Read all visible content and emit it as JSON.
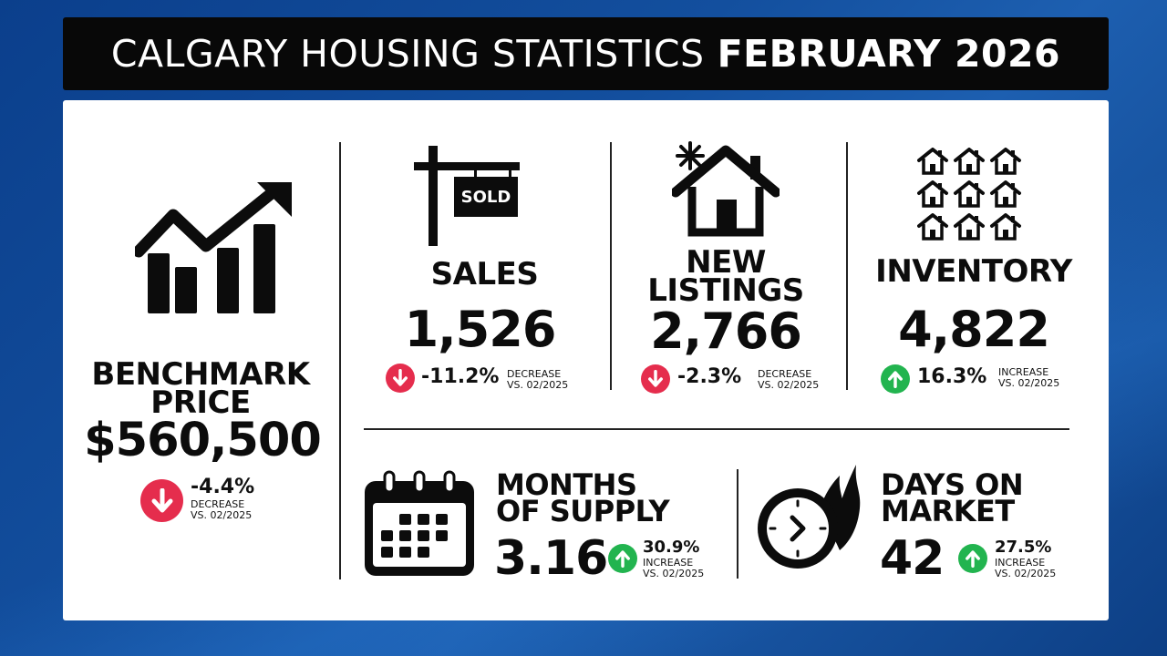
{
  "header": {
    "title_light": "CALGARY HOUSING STATISTICS",
    "title_bold": "FEBRUARY 2026"
  },
  "benchmark": {
    "label_line1": "BENCHMARK",
    "label_line2": "PRICE",
    "value": "$560,500",
    "change": "-4.4%",
    "direction": "DECREASE",
    "comparison": "VS. 02/2025",
    "icon": "rising-bar-chart-icon"
  },
  "sales": {
    "label": "SALES",
    "value": "1,526",
    "change": "-11.2%",
    "direction": "DECREASE",
    "comparison": "VS. 02/2025",
    "icon": "sold-sign-icon",
    "sign_text": "SOLD"
  },
  "new_listings": {
    "label_line1": "NEW",
    "label_line2": "LISTINGS",
    "value": "2,766",
    "change": "-2.3%",
    "direction": "DECREASE",
    "comparison": "VS. 02/2025",
    "icon": "new-house-icon"
  },
  "inventory": {
    "label": "INVENTORY",
    "value": "4,822",
    "change": "16.3%",
    "direction": "INCREASE",
    "comparison": "VS. 02/2025",
    "icon": "houses-grid-icon"
  },
  "months_supply": {
    "label_line1": "MONTHS",
    "label_line2": "OF SUPPLY",
    "value": "3.16",
    "change": "30.9%",
    "direction": "INCREASE",
    "comparison": "VS. 02/2025",
    "icon": "calendar-icon"
  },
  "days_on_market": {
    "label_line1": "DAYS ON",
    "label_line2": "MARKET",
    "value": "42",
    "change": "27.5%",
    "direction": "INCREASE",
    "comparison": "VS. 02/2025",
    "icon": "fast-clock-icon"
  },
  "colors": {
    "decrease": "#e52d4d",
    "increase": "#22b44f",
    "background": "#0b3f8c",
    "header": "#080808"
  }
}
